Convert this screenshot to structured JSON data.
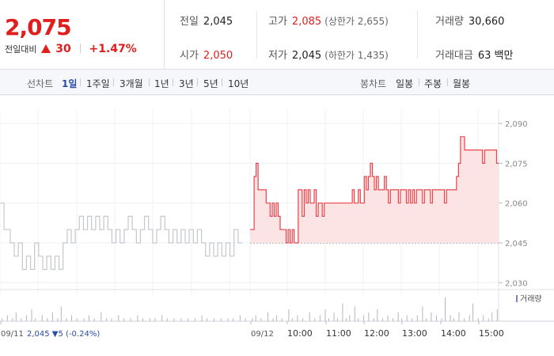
{
  "summary": {
    "price": "2,075",
    "change_label": "전일대비",
    "change_value": "30",
    "change_percent": "+1.47%",
    "prev_close_label": "전일",
    "prev_close": "2,045",
    "open_label": "시가",
    "open": "2,050",
    "high_label": "고가",
    "high": "2,085",
    "upper_limit": "(상한가 2,655)",
    "low_label": "저가",
    "low": "2,045",
    "lower_limit": "(하한가 1,435)",
    "volume_label": "거래량",
    "volume": "30,660",
    "amount_label": "거래대금",
    "amount": "63 백만"
  },
  "tabs": {
    "line_title": "선차트",
    "line_tabs": [
      "1일",
      "1주일",
      "3개월",
      "1년",
      "3년",
      "5년",
      "10년"
    ],
    "active_line_tab": 0,
    "candle_title": "봉차트",
    "candle_tabs": [
      "일봉",
      "주봉",
      "월봉"
    ]
  },
  "colors": {
    "up": "#e01e1e",
    "down": "#2a4ba8",
    "prev_day_line": "#c4c7cc",
    "today_line": "#e8434a",
    "today_fill": "#fde4e4",
    "volume_bar": "#b9b2c8"
  },
  "chart_data": {
    "type": "line",
    "ylim": [
      2028,
      2093
    ],
    "y_ticks": [
      2030,
      2045,
      2060,
      2075,
      2090
    ],
    "y_tick_labels": [
      "2,030",
      "2,045",
      "2,060",
      "2,075",
      "2,090"
    ],
    "baseline": 2045,
    "x_labels": [
      "09/11",
      "09/12",
      "10:00",
      "11:00",
      "12:00",
      "13:00",
      "14:00",
      "15:00"
    ],
    "prev_day_label": "2,045 ▼5 (-0.24%)",
    "volume_legend": "거래량",
    "prev_day": {
      "name": "09/11",
      "values": [
        2060,
        2060,
        2050,
        2050,
        2050,
        2045,
        2045,
        2040,
        2040,
        2045,
        2045,
        2035,
        2035,
        2040,
        2040,
        2035,
        2035,
        2045,
        2045,
        2040,
        2040,
        2035,
        2035,
        2040,
        2040,
        2035,
        2035,
        2040,
        2040,
        2035,
        2035,
        2045,
        2045,
        2050,
        2050,
        2045,
        2045,
        2050,
        2050,
        2055,
        2055,
        2050,
        2050,
        2055,
        2055,
        2050,
        2050,
        2055,
        2055,
        2050,
        2050,
        2055,
        2055,
        2050,
        2050,
        2045,
        2045,
        2050,
        2050,
        2045,
        2045,
        2050,
        2050,
        2055,
        2055,
        2050,
        2050,
        2045,
        2045,
        2050,
        2050,
        2055,
        2055,
        2050,
        2050,
        2045,
        2045,
        2050,
        2050,
        2055,
        2055,
        2050,
        2050,
        2045,
        2045,
        2050,
        2050,
        2045,
        2045,
        2050,
        2050,
        2045,
        2045,
        2050,
        2050,
        2045,
        2045,
        2050,
        2050,
        2045,
        2045,
        2040,
        2040,
        2045,
        2045,
        2040,
        2040,
        2045,
        2045,
        2040,
        2040,
        2045,
        2045,
        2040,
        2040,
        2050,
        2050,
        2045,
        2045
      ]
    },
    "today": {
      "name": "09/12",
      "values": [
        2050,
        2050,
        2070,
        2075,
        2065,
        2065,
        2065,
        2065,
        2060,
        2060,
        2055,
        2060,
        2055,
        2060,
        2055,
        2050,
        2050,
        2050,
        2045,
        2050,
        2045,
        2050,
        2045,
        2045,
        2065,
        2065,
        2055,
        2065,
        2060,
        2065,
        2060,
        2060,
        2065,
        2055,
        2060,
        2060,
        2055,
        2060,
        2060,
        2060,
        2060,
        2060,
        2060,
        2060,
        2060,
        2060,
        2060,
        2060,
        2060,
        2060,
        2060,
        2065,
        2060,
        2060,
        2065,
        2060,
        2060,
        2070,
        2065,
        2070,
        2075,
        2070,
        2065,
        2070,
        2065,
        2065,
        2065,
        2070,
        2065,
        2060,
        2065,
        2065,
        2065,
        2065,
        2060,
        2065,
        2065,
        2065,
        2060,
        2065,
        2060,
        2065,
        2060,
        2065,
        2065,
        2065,
        2060,
        2065,
        2065,
        2065,
        2060,
        2065,
        2065,
        2065,
        2065,
        2065,
        2065,
        2060,
        2065,
        2065,
        2065,
        2065,
        2065,
        2070,
        2075,
        2085,
        2085,
        2080,
        2080,
        2080,
        2080,
        2080,
        2080,
        2080,
        2080,
        2080,
        2075,
        2080,
        2080,
        2080,
        2080,
        2080,
        2080,
        2075
      ]
    },
    "volume": [
      0,
      1,
      0,
      0,
      2,
      0,
      0,
      1,
      0,
      3,
      0,
      0,
      1,
      0,
      0,
      2,
      0,
      0,
      4,
      0,
      1,
      0,
      0,
      0,
      2,
      0,
      0,
      1,
      0,
      0,
      3,
      0,
      0,
      1,
      0,
      5,
      0,
      0,
      1,
      0,
      0,
      2,
      0,
      0,
      1,
      0,
      0,
      0,
      1,
      0,
      0,
      2,
      0,
      0,
      1,
      0,
      0,
      0,
      3,
      0,
      0,
      1,
      0,
      0,
      1,
      0,
      0,
      0,
      2,
      0,
      0,
      1,
      0,
      0,
      0,
      1,
      0,
      0,
      0,
      2,
      0,
      0,
      1,
      0,
      0,
      0,
      1,
      0,
      0,
      1,
      0,
      0,
      0,
      2,
      0,
      0,
      1,
      0,
      0,
      0,
      1,
      0,
      0,
      0,
      1,
      0,
      0,
      0,
      1,
      0,
      0,
      0,
      1,
      0,
      0,
      0,
      2,
      0,
      0,
      1,
      0,
      0,
      0,
      1,
      0,
      0,
      0,
      1,
      0,
      0,
      0,
      1,
      0,
      0,
      1,
      0,
      0,
      0,
      2,
      0,
      0,
      1,
      0,
      0,
      0,
      1,
      0,
      2,
      0,
      0,
      1,
      0,
      0,
      0,
      3,
      0,
      0,
      1,
      0,
      2,
      0,
      0,
      1,
      0,
      0,
      0,
      4,
      0,
      1,
      0,
      0,
      2,
      0,
      0,
      1,
      0,
      0,
      0,
      3,
      0,
      0,
      1,
      0,
      0,
      2,
      0,
      0,
      4,
      0,
      1,
      0,
      0,
      3,
      0,
      1,
      0,
      0,
      6,
      0,
      1,
      0,
      2,
      0,
      0,
      5,
      0,
      1,
      0,
      0,
      2,
      0,
      0,
      3,
      0,
      0,
      1,
      0,
      4,
      0,
      0,
      1,
      0,
      0,
      2,
      0,
      0,
      1,
      0,
      0,
      3,
      0,
      1,
      0,
      0,
      2,
      0,
      0,
      1,
      0,
      0,
      2,
      0,
      0,
      5,
      0,
      1,
      0,
      0,
      3,
      0,
      0,
      2,
      0,
      0,
      1,
      0,
      8,
      0,
      0,
      2,
      0,
      1,
      0,
      0,
      3,
      0,
      0,
      1,
      0,
      0,
      2,
      0,
      6,
      0,
      0,
      1,
      0,
      0,
      2,
      0,
      0,
      1,
      0,
      3,
      0,
      0,
      4
    ]
  }
}
